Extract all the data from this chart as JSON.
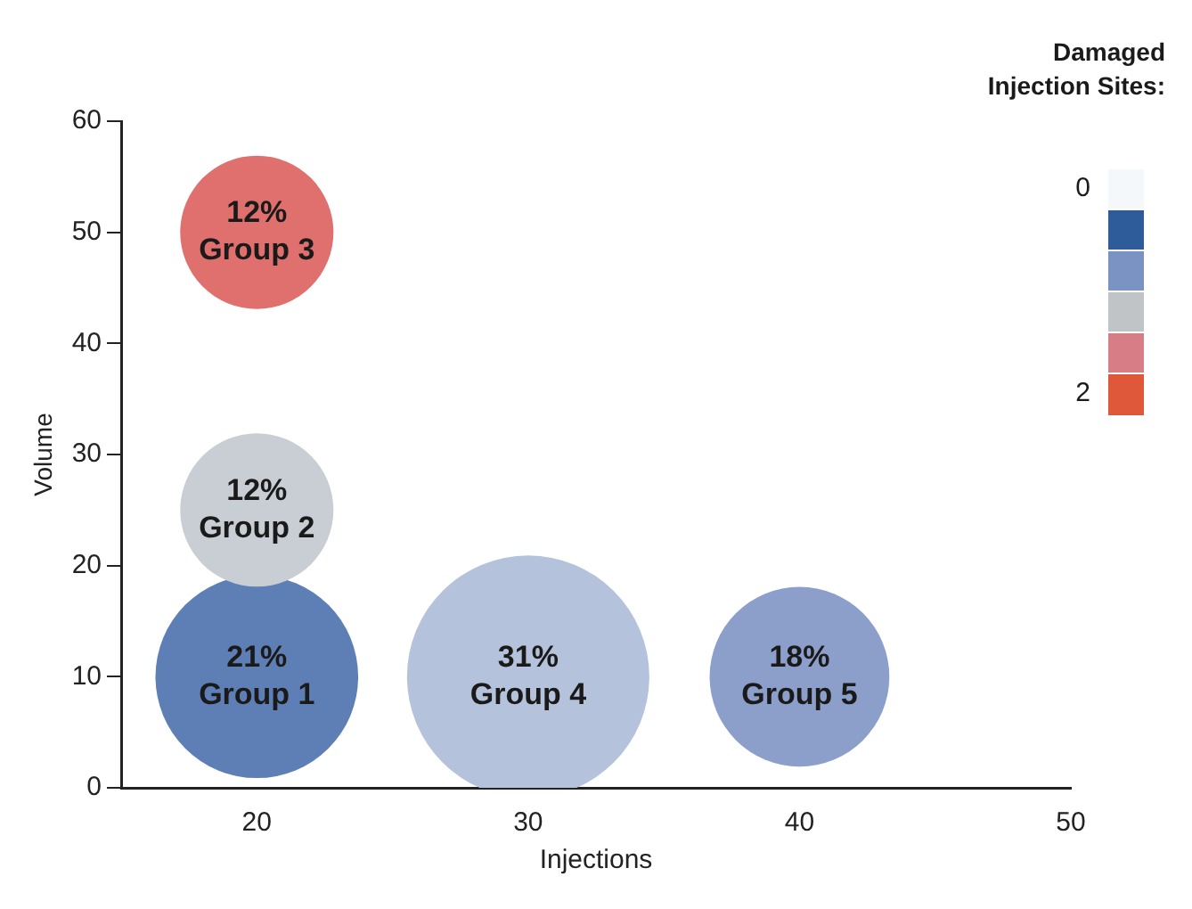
{
  "chart_data": {
    "type": "bubble",
    "xlabel": "Injections",
    "ylabel": "Volume",
    "legend_title": "Damaged\nInjection Sites:",
    "annotations": [
      "0",
      "2"
    ],
    "x": [
      20,
      20,
      20,
      30,
      40
    ],
    "values": [
      10,
      25,
      50,
      10,
      10
    ],
    "sizes": [
      0.7,
      0.4,
      0.4,
      1,
      0.55
    ],
    "colors": [
      "#5e7fb5",
      "#c8ced3",
      "#e0706e",
      "#b4c3db",
      "#8c9fcb"
    ],
    "value_labels": [
      "21%\nGroup 1",
      "12%\nGroup 2",
      "12%\nGroup 3",
      "31%\nGroup 4",
      "18%\nGroup 5"
    ],
    "xlim": [
      15,
      50
    ],
    "xticks": [
      20,
      30,
      40,
      50
    ],
    "ylim": [
      0,
      60
    ],
    "yticks": [
      0,
      10,
      20,
      30,
      40,
      50,
      60
    ],
    "grid": false,
    "legend": false
  }
}
